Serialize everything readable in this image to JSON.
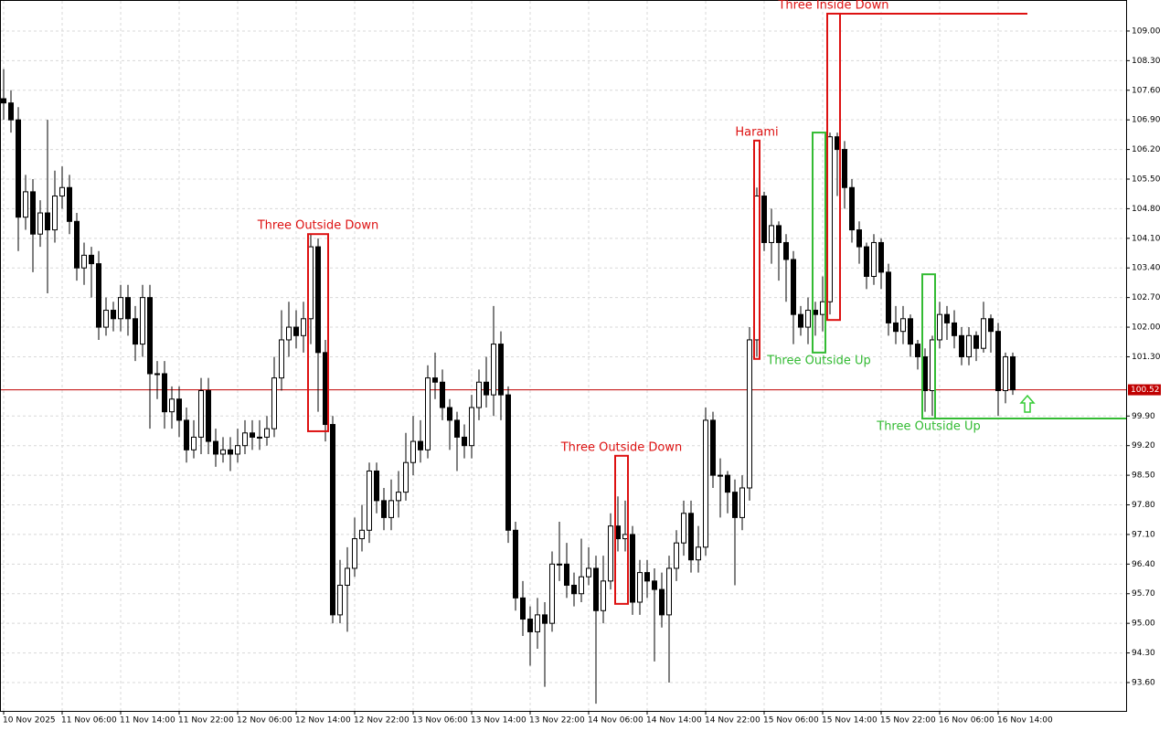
{
  "chart_data": {
    "type": "candlestick",
    "categories": [
      "10 Nov 2025",
      null,
      null,
      null,
      null,
      null,
      null,
      null,
      "11 Nov 06:00",
      null,
      null,
      null,
      null,
      null,
      null,
      null,
      "11 Nov 14:00",
      null,
      null,
      null,
      null,
      null,
      null,
      null,
      "11 Nov 22:00",
      null,
      null,
      null,
      null,
      null,
      null,
      null,
      "12 Nov 06:00",
      null,
      null,
      null,
      null,
      null,
      null,
      null,
      "12 Nov 14:00",
      null,
      null,
      null,
      null,
      null,
      null,
      null,
      "12 Nov 22:00",
      null,
      null,
      null,
      null,
      null,
      null,
      null,
      "13 Nov 06:00",
      null,
      null,
      null,
      null,
      null,
      null,
      null,
      "13 Nov 14:00",
      null,
      null,
      null,
      null,
      null,
      null,
      null,
      "13 Nov 22:00",
      null,
      null,
      null,
      null,
      null,
      null,
      null,
      "14 Nov 06:00",
      null,
      null,
      null,
      null,
      null,
      null,
      null,
      "14 Nov 14:00",
      null,
      null,
      null,
      null,
      null,
      null,
      null,
      "14 Nov 22:00",
      null,
      null,
      null,
      null,
      null,
      null,
      null,
      "15 Nov 06:00",
      null,
      null,
      null,
      null,
      null,
      null,
      null,
      "15 Nov 14:00",
      null,
      null,
      null,
      null,
      null,
      null,
      null,
      "15 Nov 22:00",
      null,
      null,
      null,
      null,
      null,
      null,
      null,
      "16 Nov 06:00",
      null,
      null,
      null,
      null,
      null,
      null,
      null,
      "16 Nov 14:00",
      null,
      null
    ],
    "open": [
      107.4,
      107.3,
      106.9,
      104.6,
      105.2,
      104.2,
      104.7,
      104.3,
      105.1,
      105.3,
      104.5,
      103.4,
      103.7,
      103.5,
      102.0,
      102.4,
      102.2,
      102.7,
      102.2,
      101.6,
      102.7,
      100.9,
      100.9,
      100.0,
      100.3,
      99.8,
      99.1,
      99.4,
      100.5,
      99.3,
      99.0,
      99.1,
      99.0,
      99.2,
      99.5,
      99.4,
      99.4,
      99.6,
      100.8,
      101.7,
      102.0,
      101.8,
      102.2,
      103.9,
      101.4,
      99.7,
      95.2,
      95.9,
      96.3,
      97.0,
      97.2,
      98.6,
      97.9,
      97.5,
      97.9,
      98.1,
      98.8,
      99.3,
      99.1,
      100.8,
      100.7,
      100.1,
      99.8,
      99.4,
      99.2,
      100.1,
      100.7,
      100.4,
      101.6,
      100.4,
      97.2,
      95.6,
      95.1,
      94.8,
      95.2,
      95.0,
      96.4,
      96.4,
      95.9,
      95.7,
      96.1,
      96.3,
      95.3,
      96.0,
      97.3,
      97.0,
      97.1,
      95.5,
      96.2,
      96.0,
      95.8,
      95.2,
      96.3,
      96.9,
      97.6,
      96.5,
      96.8,
      99.8,
      98.5,
      98.5,
      98.1,
      97.5,
      98.2,
      101.7,
      105.1,
      104.0,
      104.4,
      104.0,
      103.6,
      102.3,
      102.0,
      102.4,
      102.3,
      102.6,
      106.5,
      106.2,
      105.3,
      104.3,
      103.9,
      103.2,
      104.0,
      103.3,
      102.1,
      101.9,
      102.2,
      101.6,
      101.3,
      100.5,
      101.7,
      102.3,
      102.1,
      101.8,
      101.3,
      101.8,
      101.5,
      102.2,
      101.9,
      100.5,
      101.3
    ],
    "high": [
      108.1,
      107.6,
      107.2,
      105.6,
      105.5,
      105.0,
      106.9,
      105.7,
      105.8,
      105.6,
      104.7,
      104.0,
      103.9,
      103.8,
      102.7,
      102.6,
      103.0,
      103.0,
      102.5,
      103.0,
      103.0,
      101.2,
      101.2,
      100.6,
      100.6,
      100.1,
      99.8,
      100.8,
      100.8,
      99.6,
      99.4,
      99.4,
      99.6,
      99.8,
      99.8,
      99.8,
      99.9,
      101.3,
      102.4,
      102.6,
      102.4,
      102.6,
      104.2,
      104.1,
      101.7,
      99.9,
      96.5,
      96.8,
      97.5,
      97.8,
      98.8,
      98.8,
      98.2,
      98.4,
      98.6,
      99.5,
      99.9,
      99.8,
      101.1,
      101.4,
      101.0,
      100.3,
      100.0,
      99.7,
      100.4,
      101.0,
      101.3,
      102.5,
      101.9,
      100.6,
      97.4,
      96.0,
      95.4,
      95.6,
      95.5,
      96.7,
      97.4,
      96.9,
      96.2,
      97.0,
      96.8,
      96.6,
      96.6,
      97.6,
      98.0,
      97.9,
      97.3,
      96.5,
      96.5,
      96.3,
      96.2,
      96.6,
      97.2,
      97.9,
      97.9,
      97.3,
      100.1,
      100.0,
      98.9,
      98.6,
      98.4,
      98.5,
      102.0,
      105.3,
      105.2,
      104.8,
      104.5,
      104.2,
      103.8,
      102.5,
      102.7,
      102.6,
      103.2,
      106.6,
      106.6,
      106.4,
      105.5,
      104.5,
      104.0,
      104.2,
      104.1,
      103.5,
      102.5,
      102.5,
      102.3,
      101.7,
      101.5,
      101.8,
      102.6,
      102.5,
      102.4,
      102.0,
      102.0,
      101.9,
      102.6,
      102.3,
      102.1,
      101.4,
      101.4
    ],
    "low": [
      106.9,
      106.6,
      103.8,
      104.3,
      103.3,
      103.9,
      102.8,
      104.0,
      104.8,
      104.2,
      103.1,
      103.0,
      102.7,
      101.7,
      101.8,
      101.9,
      101.9,
      101.8,
      101.2,
      101.3,
      99.6,
      100.3,
      99.6,
      99.6,
      99.4,
      98.8,
      98.9,
      99.0,
      99.0,
      98.7,
      98.8,
      98.6,
      98.8,
      99.0,
      99.1,
      99.1,
      99.2,
      99.4,
      100.5,
      101.3,
      101.5,
      101.4,
      101.6,
      100.0,
      99.3,
      95.0,
      95.0,
      94.8,
      96.1,
      96.7,
      96.9,
      97.6,
      97.2,
      97.2,
      97.5,
      97.9,
      98.5,
      98.8,
      98.9,
      100.3,
      99.8,
      99.1,
      98.6,
      98.9,
      98.9,
      99.8,
      100.1,
      99.9,
      99.8,
      96.9,
      95.3,
      94.7,
      94.0,
      94.4,
      93.5,
      94.8,
      96.0,
      95.6,
      95.4,
      95.5,
      95.9,
      93.1,
      95.0,
      95.8,
      96.7,
      96.7,
      95.2,
      95.2,
      95.6,
      94.1,
      94.9,
      93.6,
      96.0,
      96.6,
      96.2,
      96.2,
      96.6,
      98.2,
      97.5,
      97.6,
      95.9,
      97.2,
      97.9,
      101.3,
      103.8,
      103.5,
      103.1,
      102.6,
      101.6,
      101.8,
      101.6,
      101.8,
      101.9,
      102.3,
      105.1,
      104.8,
      104.0,
      103.5,
      102.9,
      103.0,
      102.9,
      101.8,
      101.6,
      101.6,
      101.3,
      101.0,
      100.0,
      99.9,
      101.5,
      101.7,
      101.5,
      101.1,
      101.1,
      101.2,
      101.4,
      101.4,
      99.9,
      100.2,
      100.4
    ],
    "close": [
      107.3,
      106.9,
      104.6,
      105.2,
      104.2,
      104.7,
      104.3,
      105.1,
      105.3,
      104.5,
      103.4,
      103.7,
      103.5,
      102.0,
      102.4,
      102.2,
      102.7,
      102.2,
      101.6,
      102.7,
      100.9,
      100.9,
      100.0,
      100.3,
      99.8,
      99.1,
      99.4,
      100.5,
      99.3,
      99.0,
      99.1,
      99.0,
      99.2,
      99.5,
      99.4,
      99.4,
      99.6,
      100.8,
      101.7,
      102.0,
      101.8,
      102.2,
      103.9,
      101.4,
      99.7,
      95.2,
      95.9,
      96.3,
      97.0,
      97.2,
      98.6,
      97.9,
      97.5,
      97.9,
      98.1,
      98.8,
      99.3,
      99.1,
      100.8,
      100.7,
      100.1,
      99.8,
      99.4,
      99.2,
      100.1,
      100.7,
      100.4,
      101.6,
      100.4,
      97.2,
      95.6,
      95.1,
      94.8,
      95.2,
      95.0,
      96.4,
      96.4,
      95.9,
      95.7,
      96.1,
      96.3,
      95.3,
      96.0,
      97.3,
      97.0,
      97.1,
      95.5,
      96.2,
      96.0,
      95.8,
      95.2,
      96.3,
      96.9,
      97.6,
      96.5,
      96.8,
      99.8,
      98.5,
      98.5,
      98.1,
      97.5,
      98.2,
      101.7,
      105.1,
      104.0,
      104.4,
      104.0,
      103.6,
      102.3,
      102.0,
      102.4,
      102.3,
      102.6,
      106.5,
      106.2,
      105.3,
      104.3,
      103.9,
      103.2,
      104.0,
      103.3,
      102.1,
      101.9,
      102.2,
      101.6,
      101.3,
      100.5,
      101.7,
      102.3,
      102.1,
      101.8,
      101.3,
      101.8,
      101.5,
      102.2,
      101.9,
      100.5,
      101.3,
      100.52
    ],
    "ylim": [
      92.93,
      109.69
    ],
    "yticks": [
      {
        "value": 109.0,
        "label": "109.00"
      },
      {
        "value": 108.3,
        "label": "108.30"
      },
      {
        "value": 107.6,
        "label": "107.60"
      },
      {
        "value": 106.9,
        "label": "106.90"
      },
      {
        "value": 106.2,
        "label": "106.20"
      },
      {
        "value": 105.5,
        "label": "105.50"
      },
      {
        "value": 104.8,
        "label": "104.80"
      },
      {
        "value": 104.1,
        "label": "104.10"
      },
      {
        "value": 103.4,
        "label": "103.40"
      },
      {
        "value": 102.7,
        "label": "102.70"
      },
      {
        "value": 102.0,
        "label": "102.00"
      },
      {
        "value": 101.3,
        "label": "101.30"
      },
      {
        "value": 99.9,
        "label": "99.90"
      },
      {
        "value": 99.2,
        "label": "99.20"
      },
      {
        "value": 98.5,
        "label": "98.50"
      },
      {
        "value": 97.8,
        "label": "97.80"
      },
      {
        "value": 97.1,
        "label": "97.10"
      },
      {
        "value": 96.4,
        "label": "96.40"
      },
      {
        "value": 95.7,
        "label": "95.70"
      },
      {
        "value": 95.0,
        "label": "95.00"
      },
      {
        "value": 94.3,
        "label": "94.30"
      },
      {
        "value": 93.6,
        "label": "93.60"
      }
    ],
    "grid": true,
    "last_price": {
      "value": 100.52,
      "label": "100.52",
      "color": "#c00000"
    },
    "annotations": [
      {
        "text": "Three Outside Down",
        "color": "#dd1111",
        "start": 42,
        "end": 44,
        "top": 104.2,
        "bottom": 99.54,
        "label_pos": "above"
      },
      {
        "text": "Three Outside Down",
        "color": "#dd1111",
        "start": 84,
        "end": 85,
        "top": 98.96,
        "bottom": 95.46,
        "label_pos": "above"
      },
      {
        "text": "Harami",
        "color": "#dd1111",
        "start": 103,
        "end": 103,
        "top": 106.41,
        "bottom": 101.25,
        "label_pos": "above"
      },
      {
        "text": "Three Outside Up",
        "color": "#33bb33",
        "start": 111,
        "end": 112,
        "top": 106.6,
        "bottom": 101.4,
        "label_pos": "below"
      },
      {
        "text": "Three Inside Down",
        "color": "#dd1111",
        "start": 113,
        "end": 114,
        "top": 109.41,
        "bottom": 102.17,
        "label_pos": "above",
        "line_level": "top",
        "line_end": 140
      },
      {
        "text": "Three Outside Up",
        "color": "#33bb33",
        "start": 126,
        "end": 127,
        "top": 103.25,
        "bottom": 99.84,
        "label_pos": "below",
        "line_level": "bottom",
        "line_end": 154
      }
    ],
    "arrow": {
      "index": 140,
      "price": 100.38,
      "color": "#33cc33"
    }
  }
}
